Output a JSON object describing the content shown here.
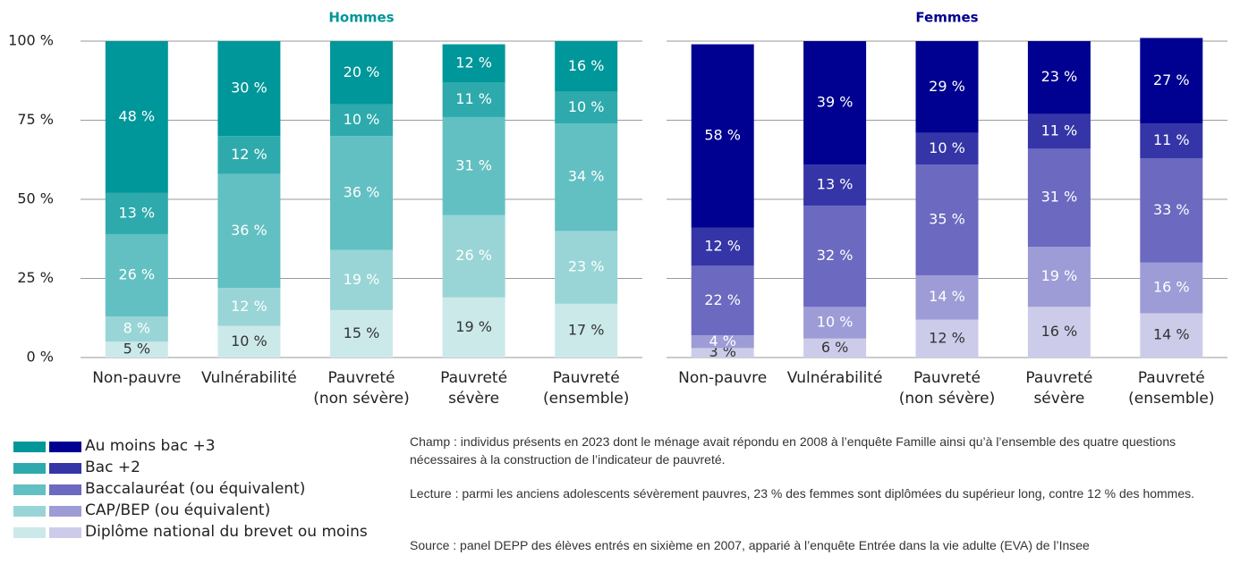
{
  "chart_data": [
    {
      "type": "stacked_bar",
      "title": "Hommes",
      "title_color": "#009598",
      "categories": [
        [
          "Non-pauvre"
        ],
        [
          "Vulnérabilité"
        ],
        [
          "Pauvreté",
          "(non sévère)"
        ],
        [
          "Pauvreté",
          "sévère"
        ],
        [
          "Pauvreté",
          "(ensemble)"
        ]
      ],
      "ylim": [
        0,
        100
      ],
      "yticks": [
        {
          "value": 0,
          "label": "0 %"
        },
        {
          "value": 25,
          "label": "25 %"
        },
        {
          "value": 50,
          "label": "50 %"
        },
        {
          "value": 75,
          "label": "75 %"
        },
        {
          "value": 100,
          "label": "100 %"
        }
      ],
      "grid": true,
      "series": [
        {
          "color": "#cce9ea",
          "values": [
            5,
            10,
            15,
            19,
            17
          ],
          "value_labels": [
            "5 %",
            "10 %",
            "15 %",
            "19 %",
            "17 %"
          ]
        },
        {
          "color": "#99d5d6",
          "values": [
            8,
            12,
            19,
            26,
            23
          ],
          "value_labels": [
            "8 %",
            "12 %",
            "19 %",
            "26 %",
            "23 %"
          ]
        },
        {
          "color": "#62c0c2",
          "values": [
            26,
            36,
            36,
            31,
            34
          ],
          "value_labels": [
            "26 %",
            "36 %",
            "36 %",
            "31 %",
            "34 %"
          ]
        },
        {
          "color": "#2eaaad",
          "values": [
            13,
            12,
            10,
            11,
            10
          ],
          "value_labels": [
            "13 %",
            "12 %",
            "10 %",
            "11 %",
            "10 %"
          ]
        },
        {
          "color": "#00979a",
          "values": [
            48,
            30,
            20,
            12,
            16
          ],
          "value_labels": [
            "48 %",
            "30 %",
            "20 %",
            "12 %",
            "16 %"
          ]
        }
      ]
    },
    {
      "type": "stacked_bar",
      "title": "Femmes",
      "title_color": "#000091",
      "categories": [
        [
          "Non-pauvre"
        ],
        [
          "Vulnérabilité"
        ],
        [
          "Pauvreté",
          "(non sévère)"
        ],
        [
          "Pauvreté",
          "sévère"
        ],
        [
          "Pauvreté",
          "(ensemble)"
        ]
      ],
      "ylim": [
        0,
        100
      ],
      "yticks": [
        0,
        25,
        50,
        75,
        100
      ],
      "grid": true,
      "series": [
        {
          "color": "#ccccea",
          "values": [
            3,
            6,
            12,
            16,
            14
          ],
          "value_labels": [
            "3 %",
            "6 %",
            "12 %",
            "16 %",
            "14 %"
          ]
        },
        {
          "color": "#9d9cd6",
          "values": [
            4,
            10,
            14,
            19,
            16
          ],
          "value_labels": [
            "4 %",
            "10 %",
            "14 %",
            "19 %",
            "16 %"
          ]
        },
        {
          "color": "#6b69c0",
          "values": [
            22,
            32,
            35,
            31,
            33
          ],
          "value_labels": [
            "22 %",
            "32 %",
            "35 %",
            "31 %",
            "33 %"
          ]
        },
        {
          "color": "#3535a8",
          "values": [
            12,
            13,
            10,
            11,
            11
          ],
          "value_labels": [
            "12 %",
            "13 %",
            "10 %",
            "11 %",
            "11 %"
          ]
        },
        {
          "color": "#000091",
          "values": [
            58,
            39,
            29,
            23,
            27
          ],
          "value_labels": [
            "58 %",
            "39 %",
            "29 %",
            "23 %",
            "27 %"
          ]
        }
      ]
    }
  ],
  "legend": [
    "Diplôme national du brevet ou moins",
    "CAP/BEP (ou équivalent)",
    "Baccalauréat (ou équivalent)",
    "Bac +2",
    "Au moins bac +3"
  ],
  "notes": [
    "Champ : individus présents en 2023 dont le ménage avait répondu en 2008 à l’enquête Famille ainsi qu’à l’ensemble des quatre questions nécessaires à la construction de l’indicateur de pauvreté.",
    "Lecture : parmi les anciens adolescents sévèrement pauvres, 23 % des femmes sont diplômées du supérieur long, contre 12 % des hommes.",
    "Source : panel DEPP des élèves entrés en sixième en 2007, apparié à l’enquête Entrée dans la vie adulte (EVA) de l’Insee"
  ]
}
